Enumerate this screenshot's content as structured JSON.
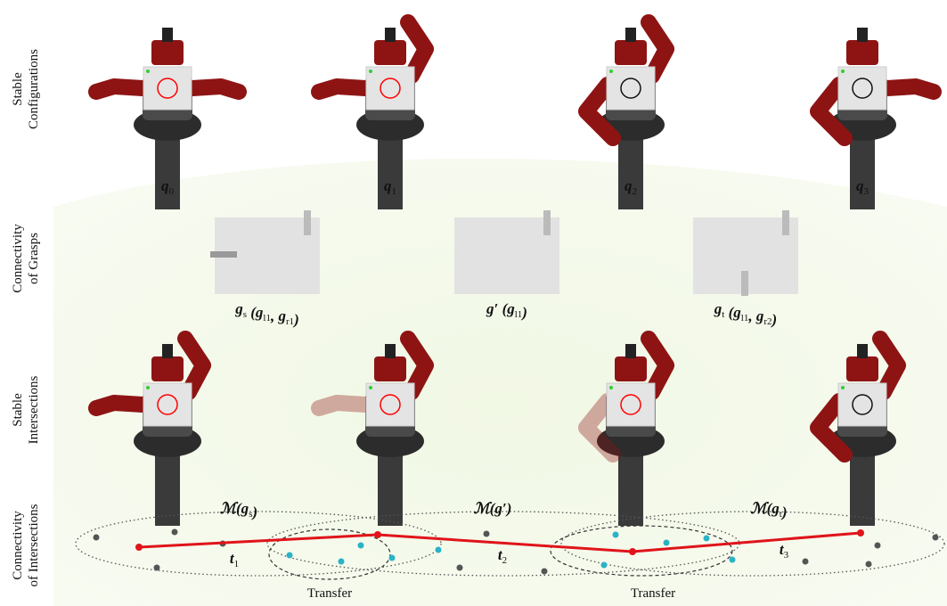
{
  "rows": [
    {
      "lines": [
        "Stable",
        "Configurations"
      ]
    },
    {
      "lines": [
        "Connectivity",
        "of Grasps"
      ]
    },
    {
      "lines": [
        "Stable",
        "Intersections"
      ]
    },
    {
      "lines": [
        "Connectivity",
        "of Intersections"
      ]
    }
  ],
  "configurations": [
    {
      "text": "q",
      "sub": "0"
    },
    {
      "text": "q",
      "sub": "1"
    },
    {
      "text": "q",
      "sub": "2"
    },
    {
      "text": "q",
      "sub": "3"
    }
  ],
  "grasps": [
    {
      "parts": [
        {
          "text": "g",
          "sub": "s"
        },
        {
          "text": " ("
        },
        {
          "text": "g",
          "sub": "l1"
        },
        {
          "text": ", "
        },
        {
          "text": "g",
          "sub": "r1"
        },
        {
          "text": ")"
        }
      ]
    },
    {
      "parts": [
        {
          "text": "g′"
        },
        {
          "text": " ("
        },
        {
          "text": "g",
          "sub": "l1"
        },
        {
          "text": ")"
        }
      ]
    },
    {
      "parts": [
        {
          "text": "g",
          "sub": "t"
        },
        {
          "text": " ("
        },
        {
          "text": "g",
          "sub": "l1"
        },
        {
          "text": ", "
        },
        {
          "text": "g",
          "sub": "r2"
        },
        {
          "text": ")"
        }
      ]
    }
  ],
  "manifolds": [
    {
      "parts": [
        {
          "text": "ℳ(g",
          "sub": "s"
        },
        {
          "text": ")"
        }
      ]
    },
    {
      "parts": [
        {
          "text": "ℳ(g′)"
        }
      ]
    },
    {
      "parts": [
        {
          "text": "ℳ(g",
          "sub": "t"
        },
        {
          "text": ")"
        }
      ]
    }
  ],
  "transitions": [
    {
      "text": "t",
      "sub": "1"
    },
    {
      "text": "t",
      "sub": "2"
    },
    {
      "text": "t",
      "sub": "3"
    }
  ],
  "transfers": [
    "Transfer",
    "Transfer"
  ]
}
